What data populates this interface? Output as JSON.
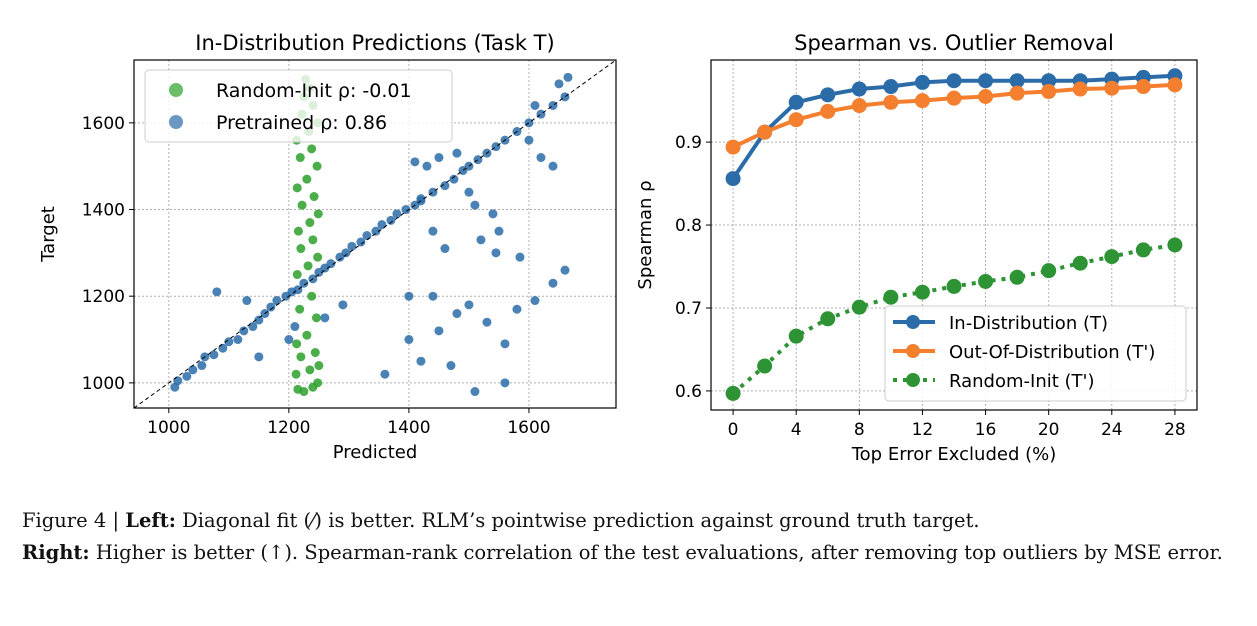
{
  "chart_data": [
    {
      "type": "scatter",
      "title": "In-Distribution Predictions (Task T)",
      "xlabel": "Predicted",
      "ylabel": "Target",
      "xlim": [
        942,
        1745
      ],
      "ylim": [
        942,
        1745
      ],
      "xticks": [
        1000,
        1200,
        1400,
        1600
      ],
      "yticks": [
        1000,
        1200,
        1400,
        1600
      ],
      "grid": true,
      "legend_position": "top-left",
      "reference_line": "y = x (dashed black)",
      "series": [
        {
          "name": "Random-Init",
          "label": "Random-Init ρ: -0.01",
          "color": "#2ca02c",
          "points": [
            [
              1215,
              985
            ],
            [
              1225,
              980
            ],
            [
              1240,
              990
            ],
            [
              1248,
              1000
            ],
            [
              1212,
              1020
            ],
            [
              1235,
              1030
            ],
            [
              1250,
              1040
            ],
            [
              1220,
              1060
            ],
            [
              1244,
              1070
            ],
            [
              1213,
              1090
            ],
            [
              1230,
              1110
            ],
            [
              1246,
              1150
            ],
            [
              1218,
              1170
            ],
            [
              1238,
              1200
            ],
            [
              1214,
              1250
            ],
            [
              1232,
              1270
            ],
            [
              1248,
              1290
            ],
            [
              1220,
              1310
            ],
            [
              1240,
              1330
            ],
            [
              1216,
              1350
            ],
            [
              1235,
              1370
            ],
            [
              1249,
              1390
            ],
            [
              1222,
              1410
            ],
            [
              1242,
              1430
            ],
            [
              1214,
              1450
            ],
            [
              1230,
              1470
            ],
            [
              1247,
              1500
            ],
            [
              1219,
              1520
            ],
            [
              1238,
              1540
            ],
            [
              1213,
              1560
            ],
            [
              1233,
              1580
            ],
            [
              1248,
              1600
            ],
            [
              1222,
              1620
            ],
            [
              1240,
              1640
            ],
            [
              1225,
              1660
            ],
            [
              1235,
              1680
            ],
            [
              1228,
              1700
            ]
          ]
        },
        {
          "name": "Pretrained",
          "label": "Pretrained      ρ: 0.86",
          "color": "#2b6ca8",
          "points": [
            [
              1010,
              990
            ],
            [
              1015,
              1005
            ],
            [
              1030,
              1015
            ],
            [
              1040,
              1030
            ],
            [
              1055,
              1040
            ],
            [
              1060,
              1060
            ],
            [
              1075,
              1065
            ],
            [
              1090,
              1080
            ],
            [
              1100,
              1095
            ],
            [
              1115,
              1100
            ],
            [
              1125,
              1120
            ],
            [
              1140,
              1130
            ],
            [
              1150,
              1145
            ],
            [
              1160,
              1160
            ],
            [
              1170,
              1175
            ],
            [
              1180,
              1190
            ],
            [
              1195,
              1200
            ],
            [
              1205,
              1210
            ],
            [
              1215,
              1215
            ],
            [
              1225,
              1230
            ],
            [
              1240,
              1240
            ],
            [
              1250,
              1255
            ],
            [
              1260,
              1265
            ],
            [
              1270,
              1275
            ],
            [
              1285,
              1290
            ],
            [
              1295,
              1300
            ],
            [
              1305,
              1315
            ],
            [
              1320,
              1325
            ],
            [
              1330,
              1340
            ],
            [
              1345,
              1350
            ],
            [
              1355,
              1365
            ],
            [
              1370,
              1375
            ],
            [
              1380,
              1390
            ],
            [
              1395,
              1400
            ],
            [
              1410,
              1410
            ],
            [
              1420,
              1425
            ],
            [
              1440,
              1440
            ],
            [
              1460,
              1455
            ],
            [
              1475,
              1470
            ],
            [
              1490,
              1490
            ],
            [
              1500,
              1500
            ],
            [
              1515,
              1515
            ],
            [
              1530,
              1530
            ],
            [
              1545,
              1545
            ],
            [
              1560,
              1560
            ],
            [
              1580,
              1580
            ],
            [
              1600,
              1600
            ],
            [
              1620,
              1620
            ],
            [
              1640,
              1640
            ],
            [
              1660,
              1660
            ],
            [
              1665,
              1705
            ],
            [
              1650,
              1690
            ],
            [
              1610,
              1640
            ],
            [
              1080,
              1210
            ],
            [
              1130,
              1190
            ],
            [
              1210,
              1130
            ],
            [
              1260,
              1150
            ],
            [
              1290,
              1180
            ],
            [
              1150,
              1060
            ],
            [
              1200,
              1100
            ],
            [
              1410,
              1510
            ],
            [
              1430,
              1500
            ],
            [
              1450,
              1520
            ],
            [
              1480,
              1530
            ],
            [
              1500,
              1440
            ],
            [
              1510,
              1410
            ],
            [
              1540,
              1390
            ],
            [
              1420,
              1420
            ],
            [
              1440,
              1350
            ],
            [
              1460,
              1310
            ],
            [
              1520,
              1330
            ],
            [
              1550,
              1350
            ],
            [
              1400,
              1100
            ],
            [
              1420,
              1050
            ],
            [
              1450,
              1120
            ],
            [
              1480,
              1160
            ],
            [
              1500,
              1180
            ],
            [
              1530,
              1140
            ],
            [
              1560,
              1090
            ],
            [
              1580,
              1170
            ],
            [
              1610,
              1190
            ],
            [
              1640,
              1230
            ],
            [
              1660,
              1260
            ],
            [
              1600,
              1560
            ],
            [
              1620,
              1520
            ],
            [
              1640,
              1500
            ],
            [
              1560,
              1000
            ],
            [
              1510,
              980
            ],
            [
              1470,
              1040
            ],
            [
              1545,
              1300
            ],
            [
              1585,
              1290
            ],
            [
              1400,
              1200
            ],
            [
              1360,
              1020
            ],
            [
              1440,
              1200
            ]
          ]
        }
      ]
    },
    {
      "type": "line",
      "title": "Spearman vs. Outlier Removal",
      "xlabel": "Top Error Excluded (%)",
      "ylabel": "Spearman ρ",
      "xlim": [
        -1.4,
        29.4
      ],
      "ylim": [
        0.577,
        0.999
      ],
      "xticks": [
        0,
        4,
        8,
        12,
        16,
        20,
        24,
        28
      ],
      "yticks": [
        0.6,
        0.7,
        0.8,
        0.9
      ],
      "ytick_labels": [
        "0.6",
        "0.7",
        "0.8",
        "0.9"
      ],
      "grid": true,
      "legend_position": "bottom-right",
      "x": [
        0,
        2,
        4,
        6,
        8,
        10,
        12,
        14,
        16,
        18,
        20,
        22,
        24,
        26,
        28
      ],
      "series": [
        {
          "name": "In-Distribution (T)",
          "color": "#2b6ca8",
          "dash": "solid",
          "values": [
            0.856,
            0.912,
            0.948,
            0.957,
            0.964,
            0.967,
            0.972,
            0.974,
            0.974,
            0.974,
            0.974,
            0.974,
            0.976,
            0.978,
            0.98
          ]
        },
        {
          "name": "Out-Of-Distribution (T')",
          "color": "#f47f2e",
          "dash": "solid",
          "values": [
            0.894,
            0.912,
            0.927,
            0.937,
            0.944,
            0.948,
            0.95,
            0.953,
            0.955,
            0.959,
            0.961,
            0.964,
            0.965,
            0.967,
            0.969
          ]
        },
        {
          "name": "Random-Init (T')",
          "color": "#2e9335",
          "dash": "dotted",
          "values": [
            0.597,
            0.63,
            0.666,
            0.687,
            0.701,
            0.713,
            0.719,
            0.726,
            0.732,
            0.737,
            0.745,
            0.754,
            0.762,
            0.77,
            0.776
          ]
        }
      ]
    }
  ],
  "caption": {
    "figure_label": "Figure 4 | ",
    "left_label": "Left:",
    "left_text": " Diagonal fit (⁄) is better. RLM’s pointwise prediction against ground truth target.",
    "right_label": "Right:",
    "right_text": " Higher is better (↑). Spearman-rank correlation of the test evaluations, after removing top outliers by MSE error."
  }
}
